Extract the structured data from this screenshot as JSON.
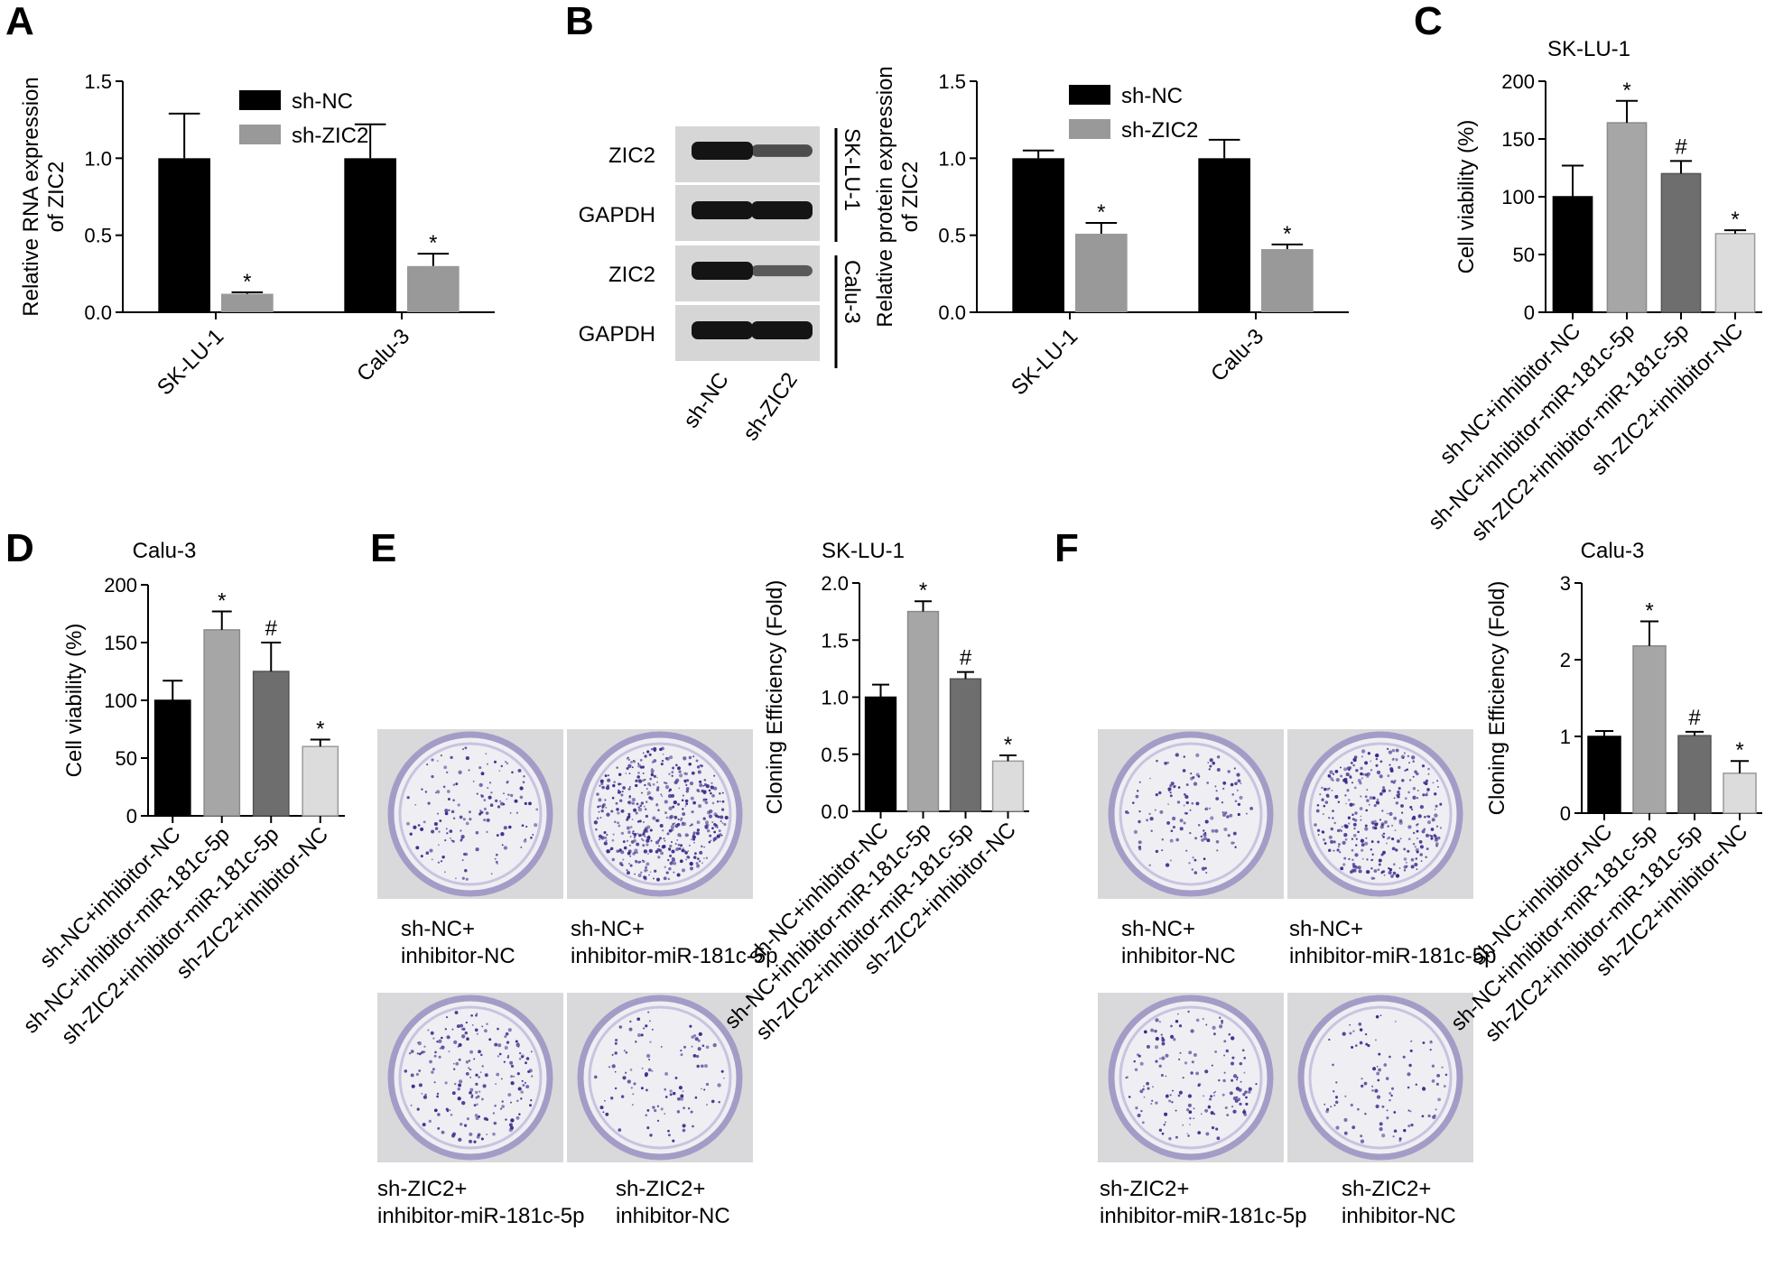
{
  "panel_labels": [
    "A",
    "B",
    "C",
    "D",
    "E",
    "F"
  ],
  "colors": {
    "black": "#000000",
    "gray": "#999999",
    "dark_gray": "#6d6d6d",
    "light_gray": "#d0d0d0",
    "dish_stain": "#3c2a8a",
    "membrane": "#d6d6d6"
  },
  "western_blot": {
    "bands": [
      "ZIC2",
      "GAPDH",
      "ZIC2",
      "GAPDH"
    ],
    "lanes": [
      "sh-NC",
      "sh-ZIC2"
    ],
    "groups": [
      "SK-LU-1",
      "Calu-3"
    ],
    "band_intensity": [
      [
        1.0,
        0.55
      ],
      [
        1.0,
        1.0
      ],
      [
        1.0,
        0.45
      ],
      [
        1.0,
        1.0
      ]
    ]
  },
  "colony_panels": [
    {
      "captions": [
        [
          "sh-NC+",
          "inhibitor-NC"
        ],
        [
          "sh-NC+",
          "inhibitor-miR-181c-5p"
        ],
        [
          "sh-ZIC2+",
          "inhibitor-miR-181c-5p"
        ],
        [
          "sh-ZIC2+",
          "inhibitor-NC"
        ]
      ],
      "densities": [
        0.3,
        0.95,
        0.4,
        0.22
      ]
    },
    {
      "captions": [
        [
          "sh-NC+",
          "inhibitor-NC"
        ],
        [
          "sh-NC+",
          "inhibitor-miR-181c-5p"
        ],
        [
          "sh-ZIC2+",
          "inhibitor-miR-181c-5p"
        ],
        [
          "sh-ZIC2+",
          "inhibitor-NC"
        ]
      ],
      "densities": [
        0.28,
        0.7,
        0.32,
        0.2
      ]
    }
  ],
  "chart_data": [
    {
      "panel": "A",
      "type": "bar",
      "title": "",
      "ylabel": [
        "Relative RNA expression",
        "of ZIC2"
      ],
      "xlabel": "",
      "ylim": [
        0,
        1.5
      ],
      "yticks": [
        "0.0",
        "0.5",
        "1.0",
        "1.5"
      ],
      "categories": [
        "SK-LU-1",
        "Calu-3"
      ],
      "series": [
        {
          "name": "sh-NC",
          "values": [
            1.0,
            1.0
          ],
          "errors": [
            0.29,
            0.22
          ],
          "sig": [
            "",
            ""
          ]
        },
        {
          "name": "sh-ZIC2",
          "values": [
            0.12,
            0.3
          ],
          "errors": [
            0.01,
            0.08
          ],
          "sig": [
            "*",
            "*"
          ]
        }
      ],
      "legend": "top-right"
    },
    {
      "panel": "B",
      "type": "bar",
      "title": "",
      "ylabel": [
        "Relative protein expression",
        "of ZIC2"
      ],
      "xlabel": "",
      "ylim": [
        0,
        1.5
      ],
      "yticks": [
        "0.0",
        "0.5",
        "1.0",
        "1.5"
      ],
      "categories": [
        "SK-LU-1",
        "Calu-3"
      ],
      "series": [
        {
          "name": "sh-NC",
          "values": [
            1.0,
            1.0
          ],
          "errors": [
            0.05,
            0.12
          ],
          "sig": [
            "",
            ""
          ]
        },
        {
          "name": "sh-ZIC2",
          "values": [
            0.51,
            0.41
          ],
          "errors": [
            0.07,
            0.03
          ],
          "sig": [
            "*",
            "*"
          ]
        }
      ],
      "legend": "top-right"
    },
    {
      "panel": "C",
      "type": "bar",
      "title": "SK-LU-1",
      "ylabel": [
        "Cell viability (%)"
      ],
      "xlabel": "",
      "ylim": [
        0,
        200
      ],
      "yticks": [
        "0",
        "50",
        "100",
        "150",
        "200"
      ],
      "categories": [
        "sh-NC+inhibitor-NC",
        "sh-NC+inhibitor-miR-181c-5p",
        "sh-ZIC2+inhibitor-miR-181c-5p",
        "sh-ZIC2+inhibitor-NC"
      ],
      "values": [
        100,
        164,
        120,
        68
      ],
      "errors": [
        27,
        19,
        11,
        3
      ],
      "sig": [
        "",
        "*",
        "#",
        "*"
      ]
    },
    {
      "panel": "D",
      "type": "bar",
      "title": "Calu-3",
      "ylabel": [
        "Cell viability (%)"
      ],
      "xlabel": "",
      "ylim": [
        0,
        200
      ],
      "yticks": [
        "0",
        "50",
        "100",
        "150",
        "200"
      ],
      "categories": [
        "sh-NC+inhibitor-NC",
        "sh-NC+inhibitor-miR-181c-5p",
        "sh-ZIC2+inhibitor-miR-181c-5p",
        "sh-ZIC2+inhibitor-NC"
      ],
      "values": [
        100,
        161,
        125,
        60
      ],
      "errors": [
        17,
        16,
        25,
        6
      ],
      "sig": [
        "",
        "*",
        "#",
        "*"
      ]
    },
    {
      "panel": "E",
      "type": "bar",
      "title": "SK-LU-1",
      "ylabel": [
        "Cloning Efficiency (Fold)"
      ],
      "xlabel": "",
      "ylim": [
        0,
        2.0
      ],
      "yticks": [
        "0.0",
        "0.5",
        "1.0",
        "1.5",
        "2.0"
      ],
      "categories": [
        "sh-NC+inhibitor-NC",
        "sh-NC+inhibitor-miR-181c-5p",
        "sh-ZIC2+inhibitor-miR-181c-5p",
        "sh-ZIC2+inhibitor-NC"
      ],
      "values": [
        1.0,
        1.75,
        1.16,
        0.44
      ],
      "errors": [
        0.11,
        0.09,
        0.06,
        0.05
      ],
      "sig": [
        "",
        "*",
        "#",
        "*"
      ]
    },
    {
      "panel": "F",
      "type": "bar",
      "title": "Calu-3",
      "ylabel": [
        "Cloning Efficiency (Fold)"
      ],
      "xlabel": "",
      "ylim": [
        0,
        3
      ],
      "yticks": [
        "0",
        "1",
        "2",
        "3"
      ],
      "categories": [
        "sh-NC+inhibitor-NC",
        "sh-NC+inhibitor-miR-181c-5p",
        "sh-ZIC2+inhibitor-miR-181c-5p",
        "sh-ZIC2+inhibitor-NC"
      ],
      "values": [
        1.0,
        2.18,
        1.01,
        0.52
      ],
      "errors": [
        0.07,
        0.32,
        0.05,
        0.16
      ],
      "sig": [
        "",
        "*",
        "#",
        "*"
      ]
    }
  ]
}
